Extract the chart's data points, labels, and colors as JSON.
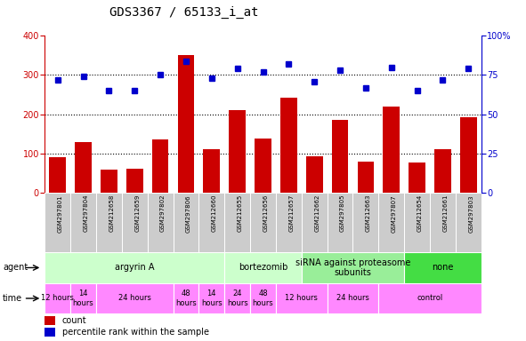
{
  "title": "GDS3367 / 65133_i_at",
  "samples": [
    "GSM297801",
    "GSM297804",
    "GSM212658",
    "GSM212659",
    "GSM297802",
    "GSM297806",
    "GSM212660",
    "GSM212655",
    "GSM212656",
    "GSM212657",
    "GSM212662",
    "GSM297805",
    "GSM212663",
    "GSM297807",
    "GSM212654",
    "GSM212661",
    "GSM297803"
  ],
  "counts": [
    90,
    130,
    58,
    62,
    135,
    352,
    110,
    210,
    137,
    242,
    93,
    186,
    80,
    220,
    76,
    110,
    193
  ],
  "percentiles": [
    72,
    74,
    65,
    65,
    75,
    84,
    73,
    79,
    77,
    82,
    71,
    78,
    67,
    80,
    65,
    72,
    79
  ],
  "ylim_left": [
    0,
    400
  ],
  "ylim_right": [
    0,
    100
  ],
  "yticks_left": [
    0,
    100,
    200,
    300,
    400
  ],
  "yticks_right": [
    0,
    25,
    50,
    75,
    100
  ],
  "bar_color": "#CC0000",
  "dot_color": "#0000CC",
  "agent_row": [
    {
      "label": "argyrin A",
      "start": 0,
      "end": 7,
      "color": "#CCFFCC"
    },
    {
      "label": "bortezomib",
      "start": 7,
      "end": 10,
      "color": "#CCFFCC"
    },
    {
      "label": "siRNA against proteasome\nsubunits",
      "start": 10,
      "end": 14,
      "color": "#99EE99"
    },
    {
      "label": "none",
      "start": 14,
      "end": 17,
      "color": "#44DD44"
    }
  ],
  "time_row": [
    {
      "label": "12 hours",
      "start": 0,
      "end": 1,
      "color": "#FF88FF"
    },
    {
      "label": "14\nhours",
      "start": 1,
      "end": 2,
      "color": "#FF88FF"
    },
    {
      "label": "24 hours",
      "start": 2,
      "end": 5,
      "color": "#FF88FF"
    },
    {
      "label": "48\nhours",
      "start": 5,
      "end": 6,
      "color": "#FF88FF"
    },
    {
      "label": "14\nhours",
      "start": 6,
      "end": 7,
      "color": "#FF88FF"
    },
    {
      "label": "24\nhours",
      "start": 7,
      "end": 8,
      "color": "#FF88FF"
    },
    {
      "label": "48\nhours",
      "start": 8,
      "end": 9,
      "color": "#FF88FF"
    },
    {
      "label": "12 hours",
      "start": 9,
      "end": 11,
      "color": "#FF88FF"
    },
    {
      "label": "24 hours",
      "start": 11,
      "end": 13,
      "color": "#FF88FF"
    },
    {
      "label": "control",
      "start": 13,
      "end": 17,
      "color": "#FF88FF"
    }
  ],
  "bar_color_legend": "#CC0000",
  "dot_color_legend": "#0000CC",
  "title_fontsize": 10,
  "tick_fontsize": 7,
  "sample_fontsize": 5,
  "annot_fontsize": 7,
  "legend_fontsize": 7
}
